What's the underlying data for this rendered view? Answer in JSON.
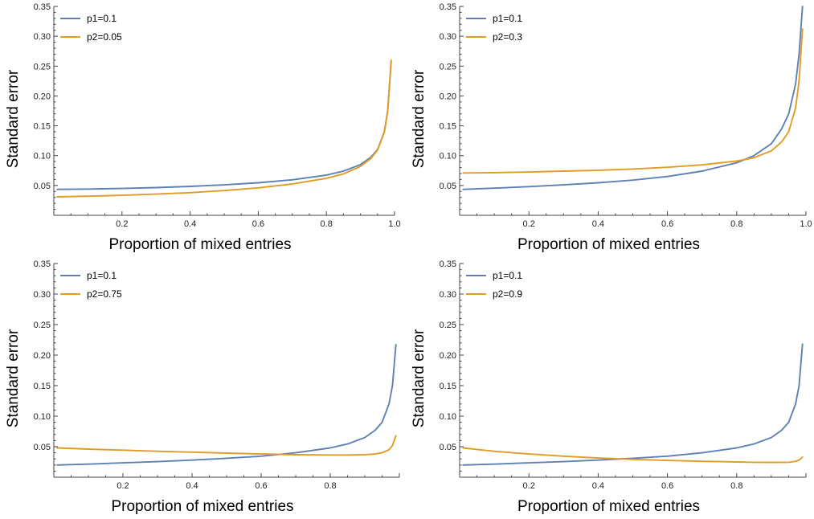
{
  "chart_data": [
    {
      "type": "line",
      "xlabel": "Proportion of mixed entries",
      "ylabel": "Standard error",
      "xlim": [
        0.0,
        1.0
      ],
      "ylim": [
        0.0,
        0.35
      ],
      "xticks": [
        "0.2",
        "0.4",
        "0.6",
        "0.8",
        "1.0"
      ],
      "yticks": [
        "0.05",
        "0.10",
        "0.15",
        "0.20",
        "0.25",
        "0.30",
        "0.35"
      ],
      "legend_position": "top-left",
      "series": [
        {
          "name": "p1=0.1",
          "color": "#5e81b5",
          "x": [
            0.01,
            0.1,
            0.2,
            0.3,
            0.4,
            0.5,
            0.6,
            0.7,
            0.8,
            0.85,
            0.9,
            0.93,
            0.95,
            0.97,
            0.98,
            0.99
          ],
          "y": [
            0.0435,
            0.044,
            0.045,
            0.0465,
            0.0485,
            0.051,
            0.0545,
            0.0595,
            0.0675,
            0.074,
            0.085,
            0.097,
            0.11,
            0.14,
            0.175,
            0.258
          ]
        },
        {
          "name": "p2=0.05",
          "color": "#e19c24",
          "x": [
            0.01,
            0.1,
            0.2,
            0.3,
            0.4,
            0.5,
            0.6,
            0.7,
            0.8,
            0.85,
            0.9,
            0.93,
            0.95,
            0.97,
            0.98,
            0.99
          ],
          "y": [
            0.031,
            0.032,
            0.0335,
            0.0355,
            0.038,
            0.0415,
            0.046,
            0.0525,
            0.062,
            0.0695,
            0.082,
            0.095,
            0.109,
            0.139,
            0.175,
            0.26
          ]
        }
      ]
    },
    {
      "type": "line",
      "xlabel": "Proportion of mixed entries",
      "ylabel": "Standard error",
      "xlim": [
        0.0,
        1.0
      ],
      "ylim": [
        0.0,
        0.35
      ],
      "xticks": [
        "0.2",
        "0.4",
        "0.6",
        "0.8",
        "1.0"
      ],
      "yticks": [
        "0.05",
        "0.10",
        "0.15",
        "0.20",
        "0.25",
        "0.30",
        "0.35"
      ],
      "legend_position": "top-left",
      "series": [
        {
          "name": "p1=0.1",
          "color": "#5e81b5",
          "x": [
            0.01,
            0.1,
            0.2,
            0.3,
            0.4,
            0.5,
            0.6,
            0.7,
            0.8,
            0.85,
            0.9,
            0.93,
            0.95,
            0.97,
            0.98,
            0.99
          ],
          "y": [
            0.0435,
            0.0455,
            0.048,
            0.051,
            0.0545,
            0.059,
            0.065,
            0.074,
            0.088,
            0.1,
            0.12,
            0.145,
            0.17,
            0.22,
            0.27,
            0.35
          ]
        },
        {
          "name": "p2=0.3",
          "color": "#e19c24",
          "x": [
            0.01,
            0.1,
            0.2,
            0.3,
            0.4,
            0.5,
            0.6,
            0.7,
            0.8,
            0.85,
            0.9,
            0.93,
            0.95,
            0.97,
            0.98,
            0.99
          ],
          "y": [
            0.071,
            0.0715,
            0.0725,
            0.074,
            0.0755,
            0.0775,
            0.0805,
            0.0845,
            0.091,
            0.0965,
            0.108,
            0.123,
            0.14,
            0.18,
            0.225,
            0.312
          ]
        }
      ]
    },
    {
      "type": "line",
      "xlabel": "Proportion of mixed entries",
      "ylabel": "Standard error",
      "xlim": [
        0.0,
        1.0
      ],
      "ylim": [
        0.0,
        0.35
      ],
      "xticks": [
        "0.2",
        "0.4",
        "0.6",
        "0.8"
      ],
      "yticks": [
        "0.05",
        "0.10",
        "0.15",
        "0.20",
        "0.25",
        "0.30",
        "0.35"
      ],
      "legend_position": "top-left",
      "series": [
        {
          "name": "p1=0.1",
          "color": "#5e81b5",
          "x": [
            0.01,
            0.1,
            0.2,
            0.3,
            0.4,
            0.5,
            0.6,
            0.7,
            0.8,
            0.85,
            0.9,
            0.93,
            0.95,
            0.97,
            0.98,
            0.99
          ],
          "y": [
            0.02,
            0.0215,
            0.0235,
            0.0255,
            0.028,
            0.031,
            0.0345,
            0.04,
            0.048,
            0.0545,
            0.065,
            0.077,
            0.09,
            0.12,
            0.15,
            0.217
          ]
        },
        {
          "name": "p2=0.75",
          "color": "#e19c24",
          "x": [
            0.01,
            0.1,
            0.2,
            0.3,
            0.4,
            0.5,
            0.6,
            0.7,
            0.8,
            0.85,
            0.9,
            0.93,
            0.95,
            0.97,
            0.98,
            0.99
          ],
          "y": [
            0.048,
            0.046,
            0.0443,
            0.0425,
            0.041,
            0.0395,
            0.038,
            0.0368,
            0.0365,
            0.0365,
            0.037,
            0.038,
            0.04,
            0.045,
            0.052,
            0.068
          ]
        }
      ]
    },
    {
      "type": "line",
      "xlabel": "Proportion of mixed entries",
      "ylabel": "Standard error",
      "xlim": [
        0.0,
        1.0
      ],
      "ylim": [
        0.0,
        0.35
      ],
      "xticks": [
        "0.2",
        "0.4",
        "0.6",
        "0.8"
      ],
      "yticks": [
        "0.05",
        "0.10",
        "0.15",
        "0.20",
        "0.25",
        "0.30",
        "0.35"
      ],
      "legend_position": "top-left",
      "series": [
        {
          "name": "p1=0.1",
          "color": "#5e81b5",
          "x": [
            0.01,
            0.1,
            0.2,
            0.3,
            0.4,
            0.5,
            0.6,
            0.7,
            0.8,
            0.85,
            0.9,
            0.93,
            0.95,
            0.97,
            0.98,
            0.99
          ],
          "y": [
            0.02,
            0.0215,
            0.0235,
            0.0255,
            0.028,
            0.031,
            0.0345,
            0.04,
            0.048,
            0.0545,
            0.065,
            0.077,
            0.09,
            0.12,
            0.15,
            0.218
          ]
        },
        {
          "name": "p2=0.9",
          "color": "#e19c24",
          "x": [
            0.01,
            0.05,
            0.1,
            0.2,
            0.3,
            0.4,
            0.5,
            0.6,
            0.7,
            0.8,
            0.85,
            0.9,
            0.95,
            0.97,
            0.98,
            0.99
          ],
          "y": [
            0.048,
            0.0455,
            0.0425,
            0.038,
            0.0345,
            0.0315,
            0.0292,
            0.0275,
            0.026,
            0.025,
            0.0245,
            0.0243,
            0.0245,
            0.026,
            0.028,
            0.033
          ]
        }
      ]
    }
  ]
}
